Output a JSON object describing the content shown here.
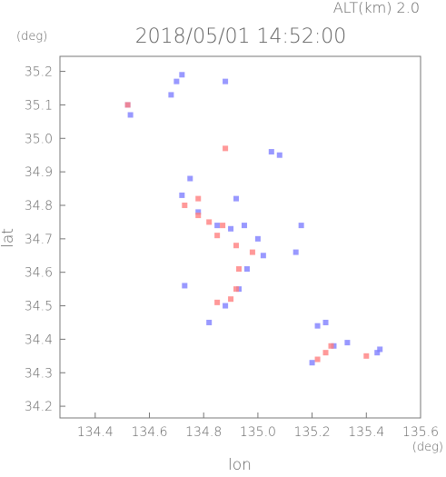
{
  "chart_data": {
    "type": "scatter",
    "title": "2018/05/01 14:52:00",
    "subtitle": "ALT(km) 2.0",
    "y_unit": "(deg)",
    "x_unit": "(deg)",
    "x_label": "lon",
    "y_label": "lat",
    "xlim": [
      134.27,
      135.6
    ],
    "ylim": [
      34.165,
      35.245
    ],
    "xticks": [
      134.4,
      134.6,
      134.8,
      {
        "value": 135.0,
        "label": "135.0"
      },
      135.2,
      135.4,
      135.6
    ],
    "yticks": [
      34.2,
      34.3,
      34.4,
      34.5,
      34.6,
      34.7,
      34.8,
      34.9,
      {
        "value": 35.0,
        "label": "35.0"
      },
      35.1,
      35.2
    ],
    "series": [
      {
        "color": "#8080ff",
        "x": [
          134.52,
          134.53,
          134.7,
          134.72,
          134.68,
          134.75,
          134.92,
          134.72,
          134.78,
          134.85,
          134.9,
          134.95,
          135.0,
          135.02,
          134.96,
          134.73,
          134.93,
          134.88,
          134.82,
          135.22,
          135.25,
          135.28,
          135.33,
          135.44,
          135.45,
          135.2,
          135.05,
          135.08,
          135.14,
          135.16,
          134.88
        ],
        "values": [
          35.1,
          35.07,
          35.17,
          35.19,
          35.13,
          34.88,
          34.82,
          34.83,
          34.78,
          34.74,
          34.73,
          34.74,
          34.7,
          34.65,
          34.61,
          34.56,
          34.55,
          34.5,
          34.45,
          34.44,
          34.45,
          34.38,
          34.39,
          34.36,
          34.37,
          34.33,
          34.96,
          34.95,
          34.66,
          34.74,
          35.17
        ]
      },
      {
        "color": "#ff8080",
        "x": [
          134.52,
          134.88,
          134.73,
          134.78,
          134.82,
          134.85,
          134.92,
          134.98,
          134.93,
          134.9,
          134.85,
          134.92,
          135.22,
          135.25,
          135.27,
          135.4,
          134.78,
          134.87
        ],
        "values": [
          35.1,
          34.97,
          34.8,
          34.77,
          34.75,
          34.71,
          34.68,
          34.66,
          34.61,
          34.52,
          34.51,
          34.55,
          34.34,
          34.36,
          34.38,
          34.35,
          34.82,
          34.74
        ]
      }
    ]
  }
}
